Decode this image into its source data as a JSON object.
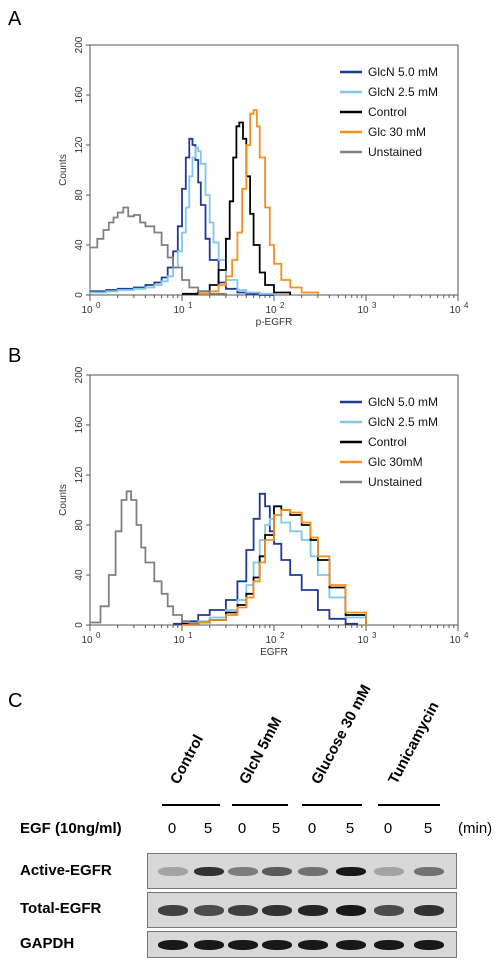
{
  "panels": {
    "a": {
      "letter": "A"
    },
    "b": {
      "letter": "B"
    },
    "c": {
      "letter": "C"
    }
  },
  "chart_data": [
    {
      "type": "line",
      "panel": "A",
      "xlabel": "p-EGFR",
      "ylabel": "Counts",
      "xscale": "log",
      "xlim": [
        1,
        10000
      ],
      "ylim": [
        0,
        200
      ],
      "xticks": [
        {
          "value": 1,
          "base": "10",
          "exp": "0"
        },
        {
          "value": 10,
          "base": "10",
          "exp": "1"
        },
        {
          "value": 100,
          "base": "10",
          "exp": "2"
        },
        {
          "value": 1000,
          "base": "10",
          "exp": "3"
        },
        {
          "value": 10000,
          "base": "10",
          "exp": "4"
        }
      ],
      "yticks": [
        "0",
        "40",
        "80",
        "120",
        "160",
        "200"
      ],
      "legend_position": "top-right",
      "series": [
        {
          "name": "GlcN 5.0 mM",
          "color": "#1f3a93",
          "x": [
            1,
            1.5,
            2,
            3,
            4,
            5,
            6,
            7,
            8,
            9,
            10,
            11,
            12,
            13,
            14,
            15,
            16,
            18,
            20,
            25,
            30,
            40,
            50,
            70,
            100
          ],
          "y": [
            3,
            4,
            5,
            6,
            8,
            10,
            14,
            22,
            35,
            55,
            85,
            110,
            125,
            120,
            108,
            90,
            72,
            45,
            28,
            10,
            5,
            2,
            1,
            0,
            0
          ]
        },
        {
          "name": "GlcN 2.5 mM",
          "color": "#7ec8ea",
          "x": [
            1,
            1.5,
            2,
            3,
            4,
            5,
            6,
            7,
            8,
            9,
            10,
            11,
            12,
            13,
            14,
            15,
            16,
            18,
            20,
            22,
            25,
            30,
            40,
            50,
            70,
            100
          ],
          "y": [
            2,
            3,
            4,
            5,
            6,
            8,
            11,
            15,
            22,
            35,
            50,
            70,
            95,
            110,
            118,
            115,
            105,
            80,
            58,
            42,
            28,
            12,
            4,
            2,
            1,
            0
          ]
        },
        {
          "name": "Control",
          "color": "#000000",
          "x": [
            10,
            15,
            20,
            25,
            30,
            33,
            36,
            39,
            42,
            46,
            50,
            55,
            60,
            70,
            80,
            100,
            150
          ],
          "y": [
            1,
            3,
            8,
            20,
            45,
            75,
            110,
            135,
            138,
            125,
            95,
            65,
            40,
            18,
            8,
            2,
            0
          ]
        },
        {
          "name": "Glc 30 mM",
          "color": "#f5901e",
          "x": [
            15,
            20,
            25,
            30,
            35,
            40,
            45,
            50,
            55,
            60,
            65,
            70,
            80,
            90,
            100,
            120,
            150,
            200,
            300
          ],
          "y": [
            1,
            3,
            8,
            15,
            28,
            50,
            85,
            120,
            145,
            148,
            135,
            110,
            70,
            40,
            25,
            12,
            6,
            2,
            0
          ]
        },
        {
          "name": "Unstained",
          "color": "#808080",
          "x": [
            1,
            1.2,
            1.4,
            1.6,
            1.8,
            2,
            2.3,
            2.6,
            3,
            3.5,
            4,
            5,
            6,
            7,
            8,
            10,
            12,
            15,
            20,
            30
          ],
          "y": [
            38,
            45,
            52,
            58,
            62,
            66,
            70,
            63,
            64,
            58,
            55,
            50,
            40,
            30,
            22,
            12,
            6,
            3,
            1,
            0
          ]
        }
      ]
    },
    {
      "type": "line",
      "panel": "B",
      "xlabel": "EGFR",
      "ylabel": "Counts",
      "xscale": "log",
      "xlim": [
        1,
        10000
      ],
      "ylim": [
        0,
        200
      ],
      "xticks": [
        {
          "value": 1,
          "base": "10",
          "exp": "0"
        },
        {
          "value": 10,
          "base": "10",
          "exp": "1"
        },
        {
          "value": 100,
          "base": "10",
          "exp": "2"
        },
        {
          "value": 1000,
          "base": "10",
          "exp": "3"
        },
        {
          "value": 10000,
          "base": "10",
          "exp": "4"
        }
      ],
      "yticks": [
        "0",
        "40",
        "80",
        "120",
        "160",
        "200"
      ],
      "legend_position": "top-right",
      "series": [
        {
          "name": "GlcN 5.0 mM",
          "color": "#1f3a93",
          "x": [
            8,
            10,
            15,
            20,
            30,
            40,
            50,
            60,
            70,
            80,
            90,
            100,
            120,
            150,
            200,
            300,
            400,
            600,
            800
          ],
          "y": [
            1,
            3,
            8,
            12,
            20,
            35,
            60,
            85,
            105,
            95,
            75,
            65,
            52,
            40,
            28,
            12,
            5,
            1,
            0
          ]
        },
        {
          "name": "GlcN 2.5 mM",
          "color": "#7ec8ea",
          "x": [
            10,
            15,
            20,
            30,
            40,
            50,
            60,
            70,
            80,
            90,
            100,
            120,
            150,
            200,
            250,
            300,
            400,
            600,
            1000
          ],
          "y": [
            1,
            3,
            6,
            12,
            20,
            32,
            50,
            68,
            80,
            85,
            88,
            82,
            75,
            68,
            55,
            40,
            22,
            6,
            0
          ]
        },
        {
          "name": "Control",
          "color": "#000000",
          "x": [
            10,
            15,
            20,
            30,
            40,
            50,
            60,
            70,
            80,
            100,
            120,
            150,
            200,
            250,
            300,
            400,
            600,
            1000
          ],
          "y": [
            1,
            2,
            4,
            10,
            16,
            25,
            38,
            55,
            72,
            95,
            92,
            88,
            80,
            68,
            52,
            30,
            8,
            0
          ]
        },
        {
          "name": "Glc 30mM",
          "color": "#f5901e",
          "x": [
            10,
            15,
            20,
            30,
            40,
            50,
            60,
            70,
            80,
            100,
            120,
            150,
            200,
            250,
            300,
            400,
            600,
            1000
          ],
          "y": [
            0,
            2,
            4,
            8,
            14,
            22,
            35,
            50,
            68,
            88,
            92,
            90,
            82,
            70,
            55,
            32,
            10,
            0
          ]
        },
        {
          "name": "Unstained",
          "color": "#808080",
          "x": [
            1,
            1.3,
            1.6,
            1.9,
            2.2,
            2.5,
            2.8,
            3.2,
            3.6,
            4,
            5,
            6,
            7,
            8,
            10,
            12,
            15
          ],
          "y": [
            2,
            15,
            40,
            75,
            100,
            107,
            100,
            80,
            62,
            50,
            35,
            25,
            15,
            8,
            3,
            1,
            0
          ]
        }
      ]
    }
  ],
  "blot": {
    "groups": [
      "Control",
      "GlcN 5mM",
      "Glucose 30 mM",
      "Tunicamycin"
    ],
    "egf_label": "EGF (10ng/ml)",
    "times": [
      "0",
      "5",
      "0",
      "5",
      "0",
      "5",
      "0",
      "5"
    ],
    "unit": "(min)",
    "rows": [
      "Active-EGFR",
      "Total-EGFR",
      "GAPDH"
    ],
    "intensity": {
      "active": [
        0.35,
        0.85,
        0.55,
        0.7,
        0.6,
        0.95,
        0.35,
        0.6
      ],
      "total": [
        0.8,
        0.75,
        0.8,
        0.85,
        0.9,
        0.95,
        0.75,
        0.85
      ],
      "gapdh": [
        0.95,
        0.95,
        0.95,
        0.95,
        0.95,
        0.95,
        0.95,
        0.95
      ]
    }
  }
}
